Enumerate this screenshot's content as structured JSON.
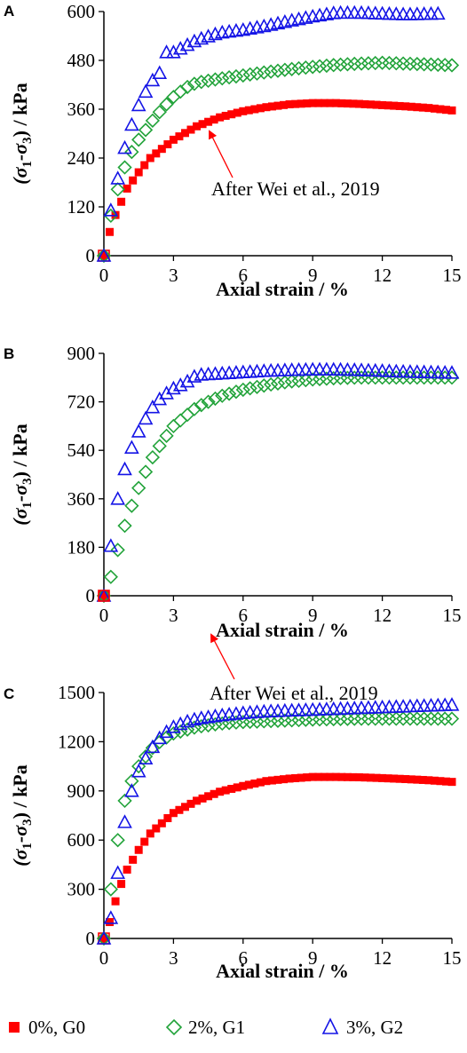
{
  "colors": {
    "G0": "#ff0000",
    "G1": "#22a33a",
    "G2": "#1414e6",
    "axis": "#000000"
  },
  "legend": [
    {
      "label": "0%, G0",
      "marker": "square",
      "color": "#ff0000"
    },
    {
      "label": "2%, G1",
      "marker": "diamond-open",
      "color": "#22a33a"
    },
    {
      "label": "3%, G2",
      "marker": "triangle-open",
      "color": "#1414e6"
    }
  ],
  "chart_data": [
    {
      "type": "scatter",
      "panel_label": "A",
      "xlabel": "Axial strain / %",
      "ylabel_main": "(σ",
      "ylabel_sub1": "1",
      "ylabel_mid": "-σ",
      "ylabel_sub2": "3",
      "ylabel_tail": ") / kPa",
      "xlim": [
        0,
        15
      ],
      "ylim": [
        0,
        600
      ],
      "xticks": [
        0,
        3,
        6,
        9,
        12,
        15
      ],
      "yticks": [
        0,
        120,
        240,
        360,
        480,
        600
      ],
      "annotation": "After Wei et al., 2019",
      "series": [
        {
          "name": "0%, G0",
          "marker": "square",
          "x": [
            0,
            0.2,
            0.5,
            1,
            1.5,
            2,
            3,
            4,
            5,
            6,
            7,
            8,
            9,
            10,
            11,
            12,
            13,
            14,
            15
          ],
          "y": [
            0,
            50,
            100,
            165,
            205,
            240,
            285,
            318,
            340,
            355,
            365,
            372,
            375,
            375,
            373,
            370,
            367,
            363,
            357
          ]
        },
        {
          "name": "2%, G1",
          "marker": "diamond",
          "x": [
            0,
            0.2,
            0.5,
            1,
            1.5,
            2,
            2.5,
            3,
            3.5,
            4,
            5,
            6,
            7,
            8,
            9,
            10,
            11,
            12,
            13,
            14,
            15
          ],
          "y": [
            0,
            75,
            145,
            235,
            285,
            325,
            360,
            390,
            412,
            425,
            435,
            443,
            451,
            458,
            464,
            469,
            472,
            474,
            472,
            470,
            468
          ]
        },
        {
          "name": "3%, G2",
          "marker": "triangle",
          "x": [
            0,
            0.2,
            0.5,
            0.8,
            1,
            1.5,
            2,
            2.5,
            2.7,
            3,
            3.5,
            4,
            5,
            6,
            7,
            8,
            9,
            10,
            11,
            12,
            13,
            14.5
          ],
          "y": [
            0,
            85,
            165,
            240,
            290,
            370,
            425,
            455,
            500,
            500,
            515,
            530,
            548,
            555,
            565,
            577,
            588,
            597,
            597,
            595,
            593,
            595
          ]
        }
      ]
    },
    {
      "type": "scatter",
      "panel_label": "B",
      "xlabel": "Axial strain / %",
      "ylabel_main": "(σ",
      "ylabel_sub1": "1",
      "ylabel_mid": "-σ",
      "ylabel_sub2": "3",
      "ylabel_tail": ") / kPa",
      "xlim": [
        0,
        15
      ],
      "ylim": [
        0,
        900
      ],
      "xticks": [
        0,
        3,
        6,
        9,
        12,
        15
      ],
      "yticks": [
        0,
        180,
        360,
        540,
        720,
        900
      ],
      "series": [
        {
          "name": "0%, G0",
          "marker": "square",
          "x": [
            0
          ],
          "y": [
            0
          ]
        },
        {
          "name": "2%, G1",
          "marker": "diamond",
          "x": [
            0,
            0.3,
            0.6,
            1,
            1.5,
            2,
            2.5,
            3,
            3.5,
            4,
            5,
            6,
            7,
            8,
            9,
            10,
            11,
            12,
            13,
            14,
            15
          ],
          "y": [
            0,
            70,
            170,
            290,
            400,
            500,
            570,
            630,
            665,
            700,
            740,
            765,
            782,
            795,
            803,
            808,
            810,
            810,
            810,
            810,
            810
          ]
        },
        {
          "name": "3%, G2",
          "marker": "triangle",
          "x": [
            0,
            0.2,
            0.4,
            0.6,
            0.8,
            1,
            1.5,
            2,
            2.5,
            3,
            3.5,
            4,
            5,
            6,
            7,
            8,
            9,
            10,
            11,
            12,
            13,
            14,
            15
          ],
          "y": [
            0,
            120,
            250,
            360,
            430,
            510,
            610,
            690,
            740,
            770,
            790,
            820,
            825,
            830,
            835,
            838,
            840,
            840,
            838,
            835,
            832,
            830,
            828
          ]
        }
      ]
    },
    {
      "type": "scatter",
      "panel_label": "C",
      "xlabel": "Axial strain / %",
      "ylabel_main": "(σ",
      "ylabel_sub1": "1",
      "ylabel_mid": "-σ",
      "ylabel_sub2": "3",
      "ylabel_tail": ") / kPa",
      "xlim": [
        0,
        15
      ],
      "ylim": [
        0,
        1500
      ],
      "xticks": [
        0,
        3,
        6,
        9,
        12,
        15
      ],
      "yticks": [
        0,
        300,
        600,
        900,
        1200,
        1500
      ],
      "annotation": "After Wei et al., 2019",
      "series": [
        {
          "name": "0%, G0",
          "marker": "square",
          "x": [
            0,
            0.3,
            0.6,
            1,
            1.5,
            2,
            3,
            4,
            5,
            6,
            7,
            8,
            9,
            10,
            11,
            12,
            13,
            14,
            15
          ],
          "y": [
            0,
            120,
            280,
            420,
            540,
            640,
            765,
            840,
            895,
            930,
            960,
            975,
            985,
            985,
            983,
            978,
            972,
            965,
            955
          ]
        },
        {
          "name": "2%, G1",
          "marker": "diamond",
          "x": [
            0,
            0.2,
            0.4,
            0.6,
            0.8,
            1,
            1.5,
            2,
            2.5,
            3,
            3.5,
            4,
            5,
            6,
            7,
            8,
            9,
            10,
            11,
            12,
            13,
            14,
            15
          ],
          "y": [
            0,
            200,
            400,
            600,
            780,
            900,
            1050,
            1150,
            1210,
            1250,
            1270,
            1290,
            1310,
            1320,
            1325,
            1330,
            1335,
            1338,
            1340,
            1340,
            1340,
            1340,
            1340
          ]
        },
        {
          "name": "3%, G2",
          "marker": "triangle",
          "x": [
            0,
            0.2,
            0.4,
            0.6,
            0.8,
            1,
            1.5,
            2,
            2.5,
            3,
            3.5,
            4,
            5,
            6,
            7,
            8,
            9,
            10,
            11,
            12,
            13,
            14,
            15
          ],
          "y": [
            0,
            50,
            200,
            400,
            600,
            820,
            1020,
            1150,
            1240,
            1290,
            1320,
            1340,
            1360,
            1375,
            1385,
            1390,
            1395,
            1400,
            1405,
            1410,
            1415,
            1420,
            1425
          ]
        }
      ]
    }
  ]
}
